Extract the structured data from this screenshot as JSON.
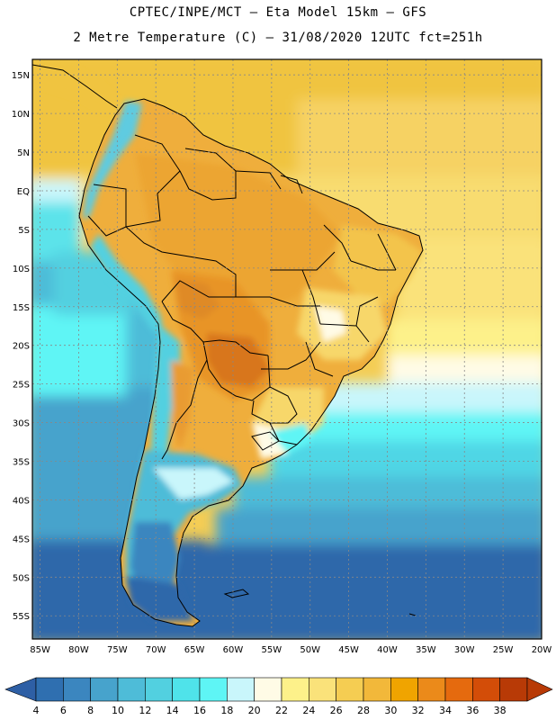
{
  "header": {
    "title_line1": "CPTEC/INPE/MCT –  Eta Model 15km – GFS",
    "title_line2": "2 Metre Temperature (C) – 31/08/2020 12UTC fct=251h"
  },
  "map": {
    "lat_labels": [
      "15N",
      "10N",
      "5N",
      "EQ",
      "5S",
      "10S",
      "15S",
      "20S",
      "25S",
      "30S",
      "35S",
      "40S",
      "45S",
      "50S",
      "55S"
    ],
    "lon_labels": [
      "85W",
      "80W",
      "75W",
      "70W",
      "65W",
      "60W",
      "55W",
      "50W",
      "45W",
      "40W",
      "35W",
      "30W",
      "25W",
      "20W"
    ],
    "lat_values": [
      15,
      10,
      5,
      0,
      -5,
      -10,
      -15,
      -20,
      -25,
      -30,
      -35,
      -40,
      -45,
      -50,
      -55
    ],
    "lon_values": [
      -85,
      -80,
      -75,
      -70,
      -65,
      -60,
      -55,
      -50,
      -45,
      -40,
      -35,
      -30,
      -25,
      -20
    ],
    "extent": {
      "lon": [
        -86,
        -20
      ],
      "lat": [
        -58,
        17
      ]
    },
    "grid": true
  },
  "colorbar": {
    "labels": [
      "4",
      "6",
      "8",
      "10",
      "12",
      "14",
      "16",
      "18",
      "20",
      "22",
      "24",
      "26",
      "28",
      "30",
      "32",
      "34",
      "36",
      "38"
    ],
    "colors": [
      "#2f6fb0",
      "#3b86bf",
      "#47a3cc",
      "#4ebcd8",
      "#52d0e0",
      "#4fe3ea",
      "#5ef5f5",
      "#c9f6fb",
      "#fffbe6",
      "#fdf18a",
      "#fae27a",
      "#f5cd52",
      "#f2b83a",
      "#f0a400",
      "#eb8a1a",
      "#e56a0e",
      "#d34d08",
      "#b83a06"
    ],
    "end_low_color": "#2e5fa5",
    "end_high_color": "#b83a06"
  }
}
